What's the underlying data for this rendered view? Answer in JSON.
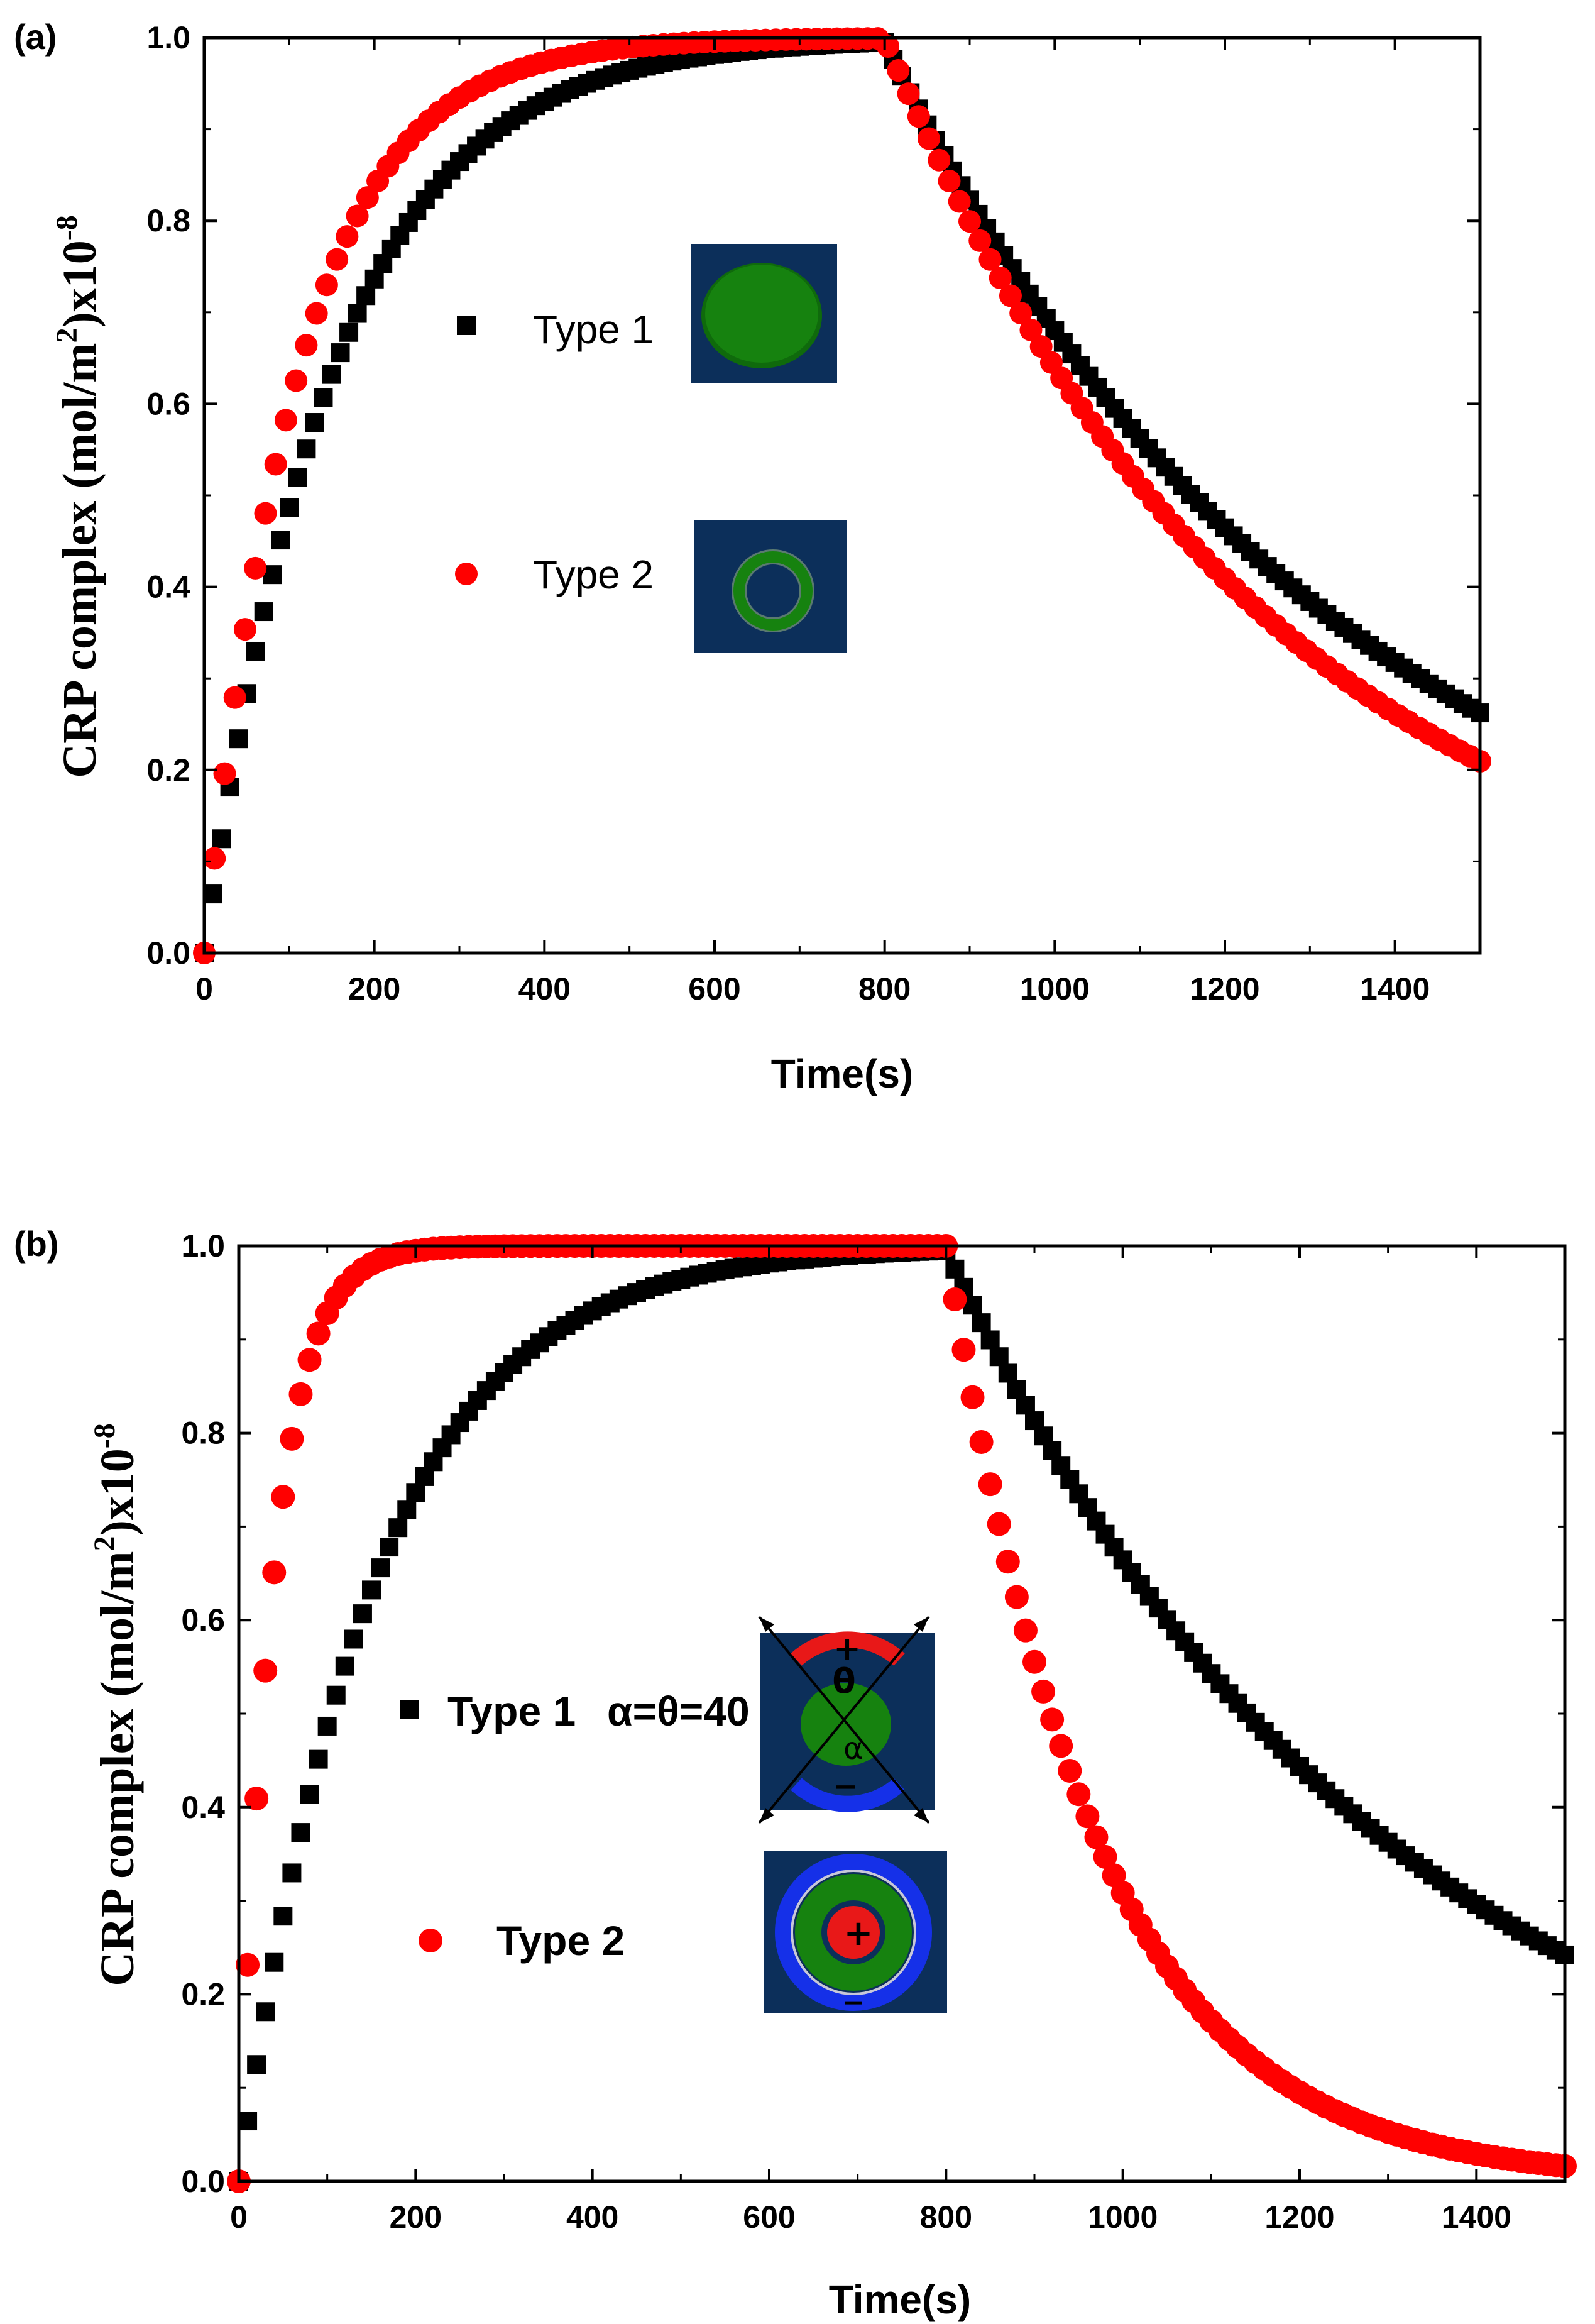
{
  "colors": {
    "type1": "#000000",
    "type2": "#ff0000",
    "inset_bg": "#0c2f5a",
    "inset_green": "#16820f",
    "inset_blue": "#1530e8",
    "inset_red": "#e81818"
  },
  "icons": {
    "type1_marker": "black-square-marker",
    "type2_marker": "red-circle-marker",
    "inset_a1": "solid-disk-electrode-icon",
    "inset_a2": "ring-electrode-icon",
    "inset_b1": "sector-electrodes-disk-icon",
    "inset_b2": "concentric-ring-electrodes-icon"
  },
  "chart_data": [
    {
      "panel_label": "(a)",
      "type": "scatter",
      "xlabel": "Time(s)",
      "ylabel_main": "CRP complex (mol/m",
      "ylabel_sup1": "2",
      "ylabel_mid": ")x10",
      "ylabel_sup2": "-8",
      "xlim": [
        0,
        1500
      ],
      "ylim": [
        0,
        1.0
      ],
      "xticks": [
        "0",
        "200",
        "400",
        "600",
        "800",
        "1000",
        "1200",
        "1400"
      ],
      "yticks": [
        "0.0",
        "0.2",
        "0.4",
        "0.6",
        "0.8",
        "1.0"
      ],
      "series": [
        {
          "name": "Type 1",
          "marker": "square",
          "association_tau": 150,
          "switch_time": 800,
          "dissociation_tau": 525,
          "t_step": 10
        },
        {
          "name": "Type 2",
          "marker": "circle",
          "association_tau": 110,
          "switch_time": 800,
          "dissociation_tau": 448,
          "t_step": 12
        }
      ],
      "legend": [
        {
          "label": "Type 1",
          "marker": "square"
        },
        {
          "label": "Type 2",
          "marker": "circle"
        }
      ]
    },
    {
      "panel_label": "(b)",
      "type": "scatter",
      "xlabel": "Time(s)",
      "ylabel_main": "CRP complex (mol/m",
      "ylabel_sup1": "2",
      "ylabel_mid": ")x10",
      "ylabel_sup2": "-8",
      "xlim": [
        0,
        1500
      ],
      "ylim": [
        0,
        1.0
      ],
      "xticks": [
        "0",
        "200",
        "400",
        "600",
        "800",
        "1000",
        "1200",
        "1400"
      ],
      "yticks": [
        "0.0",
        "0.2",
        "0.4",
        "0.6",
        "0.8",
        "1.0"
      ],
      "series": [
        {
          "name": "Type 1",
          "marker": "square",
          "association_tau": 150,
          "switch_time": 800,
          "dissociation_tau": 495,
          "t_step": 10
        },
        {
          "name": "Type 2",
          "marker": "circle",
          "association_tau": 38,
          "switch_time": 800,
          "dissociation_tau": 170,
          "t_step": 10
        }
      ],
      "legend": [
        {
          "label": "Type 1",
          "marker": "square",
          "extra": "α=θ=40"
        },
        {
          "label": "Type 2",
          "marker": "circle"
        }
      ],
      "inset_symbols": {
        "plus": "+",
        "minus": "−",
        "theta": "θ",
        "alpha": "α"
      }
    }
  ]
}
